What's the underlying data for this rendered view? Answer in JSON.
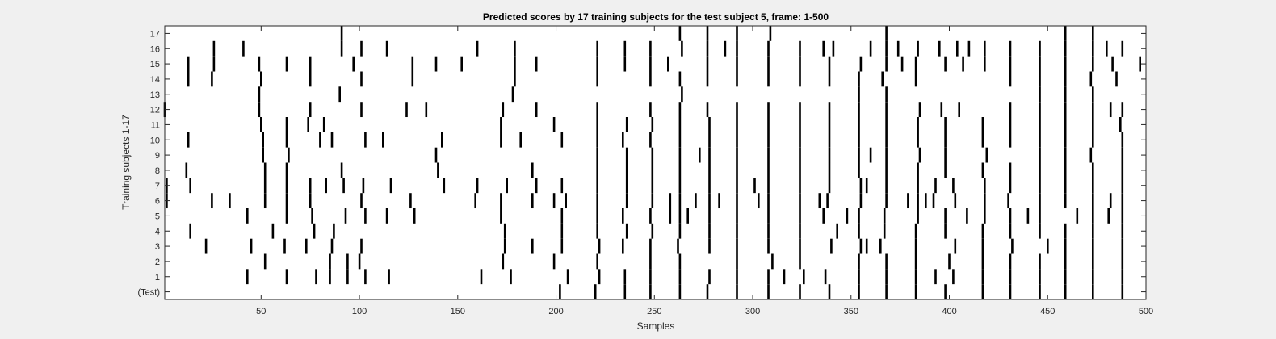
{
  "chart_data": {
    "type": "heatmap",
    "title": "Predicted scores by 17 training subjects for the test subject 5, frame: 1-500",
    "xlabel": "Samples",
    "ylabel": "Training subjects 1-17",
    "xlim": [
      1,
      500
    ],
    "x_ticks": [
      50,
      100,
      150,
      200,
      250,
      300,
      350,
      400,
      450,
      500
    ],
    "rows": [
      "(Test)",
      "1",
      "2",
      "3",
      "4",
      "5",
      "6",
      "7",
      "8",
      "9",
      "10",
      "11",
      "12",
      "13",
      "14",
      "15",
      "16",
      "17"
    ],
    "grid": false,
    "colors": {
      "mark": "#000000",
      "background": "#ffffff",
      "figure": "#f0f0f0"
    },
    "series": [
      {
        "values": [
          202,
          220,
          235,
          248,
          263,
          277,
          292,
          308,
          324,
          339,
          354,
          368,
          383,
          398,
          417,
          431,
          446,
          459,
          473,
          488
        ]
      },
      {
        "values": [
          43,
          63,
          78,
          85,
          94,
          103,
          115,
          162,
          177,
          206,
          222,
          235,
          248,
          263,
          278,
          292,
          308,
          316,
          326,
          337,
          354,
          368,
          383,
          393,
          402,
          417,
          431,
          446,
          459,
          473,
          488
        ]
      },
      {
        "values": [
          52,
          85,
          94,
          100,
          173,
          199,
          221,
          248,
          263,
          292,
          310,
          324,
          354,
          368,
          383,
          400,
          417,
          431,
          446,
          459,
          473,
          488
        ]
      },
      {
        "values": [
          22,
          45,
          62,
          73,
          86,
          101,
          174,
          188,
          203,
          222,
          234,
          248,
          262,
          278,
          292,
          308,
          324,
          340,
          355,
          358,
          365,
          383,
          403,
          417,
          432,
          450,
          459,
          473,
          488
        ]
      },
      {
        "values": [
          14,
          56,
          77,
          87,
          174,
          203,
          221,
          236,
          249,
          263,
          278,
          292,
          308,
          324,
          343,
          354,
          367,
          383,
          398,
          417,
          431,
          446,
          459,
          473,
          488
        ]
      },
      {
        "values": [
          43,
          63,
          76,
          93,
          103,
          114,
          128,
          172,
          203,
          221,
          234,
          248,
          258,
          263,
          267,
          278,
          292,
          308,
          324,
          336,
          348,
          354,
          367,
          384,
          398,
          409,
          418,
          431,
          440,
          446,
          465,
          473,
          481,
          488
        ]
      },
      {
        "values": [
          2,
          25,
          34,
          52,
          63,
          75,
          101,
          126,
          159,
          172,
          188,
          199,
          205,
          221,
          236,
          249,
          258,
          263,
          271,
          278,
          283,
          292,
          303,
          308,
          324,
          334,
          338,
          355,
          368,
          379,
          384,
          388,
          392,
          403,
          418,
          430,
          446,
          459,
          473,
          482,
          488
        ]
      },
      {
        "values": [
          2,
          14,
          52,
          63,
          75,
          83,
          92,
          102,
          116,
          143,
          160,
          175,
          190,
          203,
          221,
          236,
          249,
          263,
          278,
          292,
          301,
          308,
          324,
          339,
          355,
          358,
          368,
          384,
          393,
          402,
          418,
          431,
          446,
          459,
          473,
          488
        ]
      },
      {
        "values": [
          12,
          52,
          63,
          91,
          140,
          188,
          221,
          236,
          249,
          263,
          278,
          292,
          308,
          324,
          339,
          354,
          368,
          384,
          398,
          417,
          431,
          446,
          459,
          473,
          488
        ]
      },
      {
        "values": [
          51,
          64,
          139,
          221,
          236,
          249,
          263,
          273,
          278,
          292,
          308,
          324,
          339,
          354,
          360,
          368,
          385,
          398,
          419,
          446,
          459,
          472,
          488
        ]
      },
      {
        "values": [
          13,
          51,
          63,
          80,
          86,
          103,
          112,
          142,
          172,
          182,
          203,
          221,
          234,
          248,
          263,
          278,
          292,
          308,
          324,
          339,
          354,
          368,
          384,
          398,
          417,
          431,
          446,
          459,
          473,
          488
        ]
      },
      {
        "values": [
          50,
          63,
          74,
          82,
          172,
          199,
          221,
          236,
          249,
          263,
          278,
          292,
          308,
          324,
          339,
          354,
          368,
          384,
          398,
          417,
          431,
          446,
          459,
          473,
          487
        ]
      },
      {
        "values": [
          1,
          49,
          75,
          101,
          124,
          134,
          173,
          190,
          221,
          248,
          263,
          277,
          292,
          308,
          324,
          339,
          354,
          368,
          385,
          396,
          405,
          431,
          446,
          459,
          473,
          482,
          488
        ]
      },
      {
        "values": [
          49,
          90,
          178,
          264,
          354,
          368,
          446,
          459,
          473
        ]
      },
      {
        "values": [
          13,
          25,
          50,
          75,
          101,
          127,
          179,
          221,
          248,
          263,
          277,
          292,
          308,
          324,
          339,
          354,
          366,
          383,
          431,
          446,
          459,
          472,
          485
        ]
      },
      {
        "values": [
          13,
          26,
          49,
          63,
          75,
          97,
          127,
          139,
          152,
          179,
          190,
          221,
          235,
          248,
          257,
          277,
          292,
          308,
          324,
          339,
          355,
          368,
          376,
          383,
          398,
          407,
          418,
          431,
          446,
          459,
          473,
          483,
          497
        ]
      },
      {
        "values": [
          26,
          41,
          91,
          101,
          114,
          160,
          179,
          221,
          235,
          248,
          264,
          277,
          286,
          292,
          308,
          324,
          336,
          341,
          360,
          368,
          374,
          384,
          395,
          404,
          410,
          418,
          431,
          446,
          459,
          473,
          480,
          488
        ]
      },
      {
        "values": [
          91,
          263,
          277,
          292,
          309,
          368,
          459,
          473
        ]
      }
    ]
  }
}
